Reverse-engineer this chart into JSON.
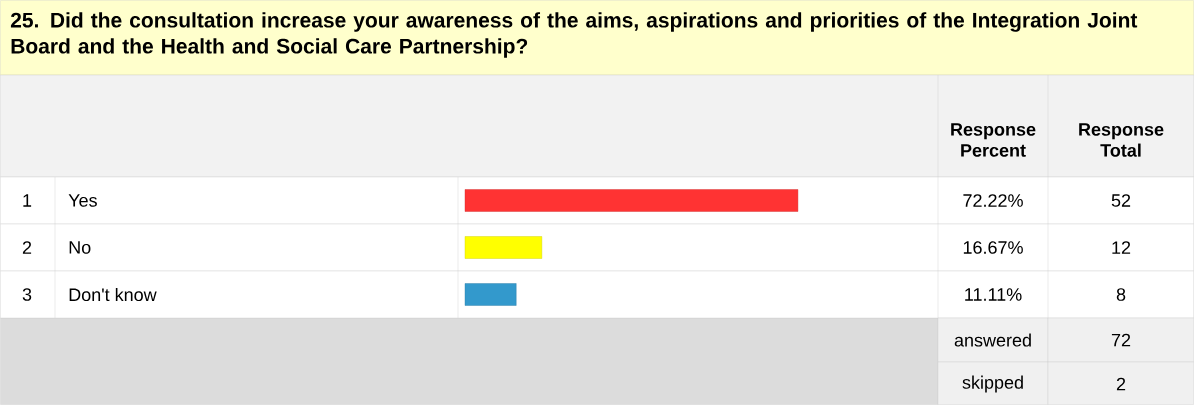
{
  "chart_data": {
    "type": "bar",
    "orientation": "horizontal",
    "title": "25. Did the consultation increase your awareness of the aims, aspirations and priorities of the Integration Joint Board and the Health and Social Care Partnership?",
    "categories": [
      "Yes",
      "No",
      "Don't know"
    ],
    "values": [
      72.22,
      16.67,
      11.11
    ],
    "colors": [
      "#ff3333",
      "#ffff00",
      "#3399cc"
    ],
    "value_labels": [
      "72.22%",
      "16.67%",
      "11.11%"
    ],
    "annotations": [
      "Response Percent",
      "Response Total",
      "1",
      "2",
      "3",
      "52",
      "12",
      "8",
      "answered",
      "72",
      "skipped",
      "2"
    ]
  }
}
